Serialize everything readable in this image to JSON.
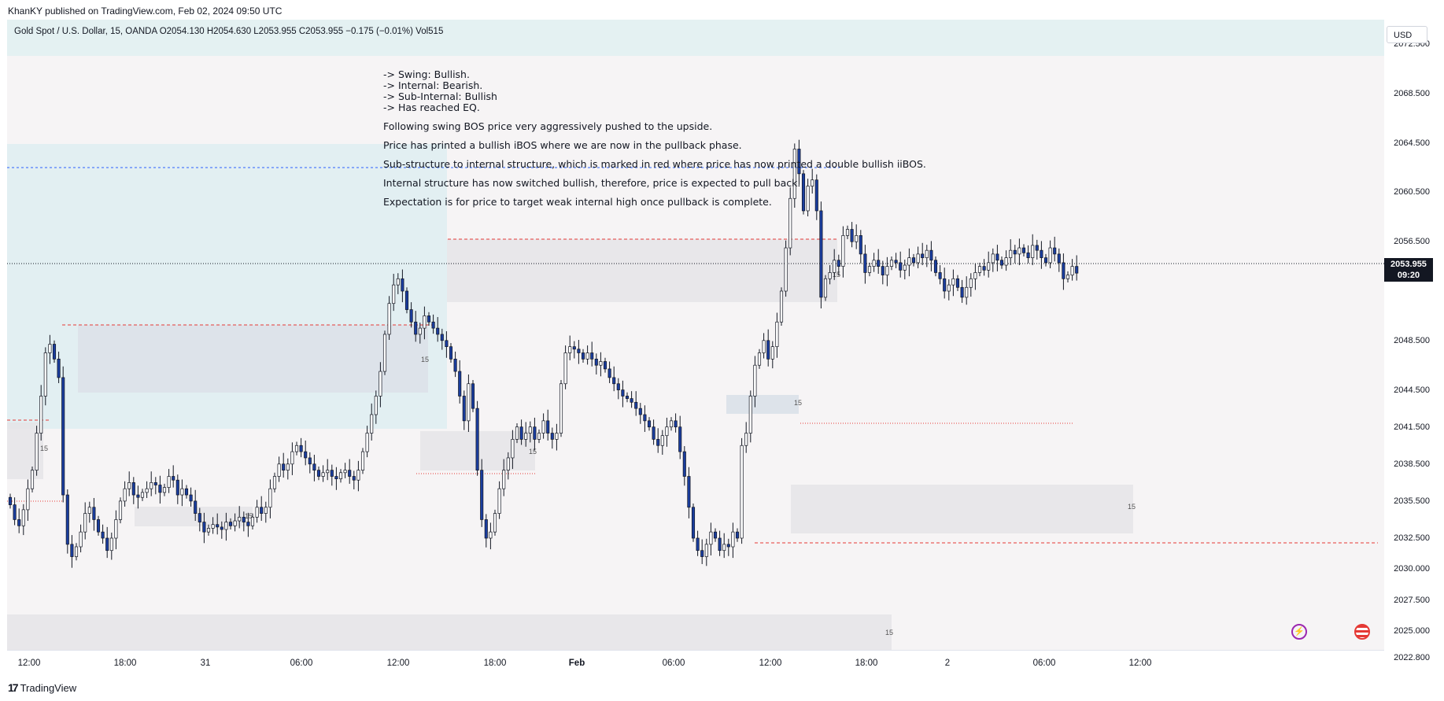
{
  "publisher": "KhanKY published on TradingView.com, Feb 02, 2024 09:50 UTC",
  "legend": "Gold Spot / U.S. Dollar, 15, OANDA  O2054.130  H2054.630  L2053.955  C2053.955  −0.175 (−0.01%)  Vol515",
  "currency": "USD",
  "current_price": {
    "price": "2053.955",
    "countdown": "09:20"
  },
  "price_axis": {
    "labels": [
      "2072.500",
      "2068.500",
      "2064.500",
      "2060.500",
      "2056.500",
      "2048.500",
      "2044.500",
      "2041.500",
      "2038.500",
      "2035.500",
      "2032.500",
      "2030.000",
      "2027.500",
      "2025.000",
      "2022.800"
    ],
    "values": [
      2072.5,
      2068.5,
      2064.5,
      2060.5,
      2056.5,
      2048.5,
      2044.5,
      2041.5,
      2038.5,
      2035.5,
      2032.5,
      2030.0,
      2027.5,
      2025.0,
      2022.8
    ]
  },
  "time_axis": [
    {
      "label": "12:00",
      "bold": false
    },
    {
      "label": "18:00",
      "bold": false
    },
    {
      "label": "31",
      "bold": false
    },
    {
      "label": "06:00",
      "bold": false
    },
    {
      "label": "12:00",
      "bold": false
    },
    {
      "label": "18:00",
      "bold": false
    },
    {
      "label": "Feb",
      "bold": true
    },
    {
      "label": "06:00",
      "bold": false
    },
    {
      "label": "12:00",
      "bold": false
    },
    {
      "label": "18:00",
      "bold": false
    },
    {
      "label": "2",
      "bold": false
    },
    {
      "label": "06:00",
      "bold": false
    },
    {
      "label": "12:00",
      "bold": false
    }
  ],
  "annotation": {
    "bullets": [
      "-> Swing: Bullish.",
      "-> Internal: Bearish.",
      "-> Sub-Internal: Bullish",
      "-> Has reached EQ."
    ],
    "paragraphs": [
      "Following swing BOS price very aggressively pushed to the upside.",
      "Price has printed a bullish iBOS where we are now in the pullback phase.",
      "Sub-structure to internal structure, which is marked in red where price has now printed a double bullish iiBOS.",
      "Internal structure has now switched bullish, therefore, price is expected to pull back.",
      "Expectation is for price to target weak internal high once pullback is complete."
    ]
  },
  "zone_label": "15",
  "footer": "TradingView",
  "colors": {
    "bull": "#ffffff",
    "bear": "#1a3d9e",
    "wick": "#131722",
    "red_line": "#e53935",
    "blue_line": "#2962ff"
  },
  "chart_data": {
    "type": "candlestick",
    "symbol": "XAUUSD",
    "interval": "15",
    "ylim": [
      2022.0,
      2073.5
    ],
    "close_series": [
      2035.2,
      2034.0,
      2033.5,
      2034.8,
      2036.5,
      2038.0,
      2041.0,
      2044.0,
      2047.5,
      2048.2,
      2047.0,
      2045.5,
      2036.0,
      2032.0,
      2031.0,
      2031.8,
      2033.0,
      2034.5,
      2035.0,
      2034.0,
      2033.0,
      2032.5,
      2031.5,
      2032.5,
      2034.0,
      2035.5,
      2036.5,
      2037.0,
      2036.0,
      2035.8,
      2036.2,
      2036.5,
      2037.0,
      2036.8,
      2036.2,
      2036.6,
      2037.5,
      2037.2,
      2036.0,
      2036.5,
      2036.0,
      2035.5,
      2034.5,
      2033.8,
      2033.0,
      2033.3,
      2033.6,
      2033.4,
      2033.2,
      2033.8,
      2033.5,
      2033.9,
      2034.2,
      2033.8,
      2033.5,
      2034.2,
      2035.0,
      2034.5,
      2035.0,
      2036.5,
      2037.5,
      2038.5,
      2038.0,
      2038.5,
      2039.5,
      2040.0,
      2039.5,
      2039.0,
      2038.5,
      2038.0,
      2037.5,
      2037.8,
      2038.0,
      2037.5,
      2037.3,
      2037.8,
      2038.0,
      2037.5,
      2037.2,
      2038.0,
      2039.5,
      2041.0,
      2042.5,
      2044.0,
      2046.0,
      2049.0,
      2051.5,
      2053.0,
      2053.5,
      2052.5,
      2051.0,
      2050.0,
      2049.0,
      2049.5,
      2050.5,
      2050.0,
      2049.5,
      2049.0,
      2048.5,
      2048.0,
      2047.0,
      2046.0,
      2044.0,
      2042.0,
      2045.0,
      2043.0,
      2038.0,
      2034.0,
      2032.5,
      2033.0,
      2034.5,
      2036.5,
      2038.0,
      2039.0,
      2040.5,
      2041.5,
      2040.5,
      2041.0,
      2041.5,
      2040.5,
      2041.0,
      2042.0,
      2041.0,
      2040.5,
      2041.0,
      2045.0,
      2047.5,
      2048.0,
      2047.8,
      2047.5,
      2047.0,
      2047.5,
      2047.0,
      2046.5,
      2046.8,
      2046.2,
      2045.5,
      2045.0,
      2044.5,
      2044.0,
      2043.8,
      2043.5,
      2043.0,
      2042.5,
      2042.0,
      2041.5,
      2040.5,
      2040.0,
      2040.8,
      2041.5,
      2042.0,
      2041.5,
      2039.5,
      2037.5,
      2035.0,
      2032.5,
      2031.5,
      2031.0,
      2032.0,
      2033.0,
      2032.5,
      2031.5,
      2032.0,
      2031.8,
      2033.0,
      2032.5,
      2040.0,
      2041.0,
      2044.0,
      2046.5,
      2047.5,
      2048.5,
      2047.0,
      2048.0,
      2050.0,
      2052.5,
      2056.0,
      2060.0,
      2064.0,
      2062.0,
      2059.0,
      2061.0,
      2061.5,
      2059.0,
      2052.0,
      2053.5,
      2054.0,
      2055.0,
      2054.5,
      2057.0,
      2057.5,
      2056.5,
      2057.0,
      2055.5,
      2054.0,
      2054.5,
      2055.0,
      2054.5,
      2053.8,
      2054.5,
      2055.0,
      2054.8,
      2054.2,
      2054.6,
      2055.2,
      2054.8,
      2055.5,
      2055.2,
      2055.8,
      2055.0,
      2054.0,
      2053.5,
      2052.5,
      2053.0,
      2053.5,
      2052.8,
      2052.0,
      2052.8,
      2053.5,
      2054.0,
      2054.5,
      2054.2,
      2054.8,
      2055.5,
      2055.0,
      2054.6,
      2055.2,
      2055.8,
      2055.5,
      2056.0,
      2055.6,
      2055.2,
      2056.2,
      2055.8,
      2055.2,
      2054.8,
      2056.0,
      2055.5,
      2054.8,
      2053.5,
      2053.8,
      2054.5,
      2053.955
    ]
  }
}
